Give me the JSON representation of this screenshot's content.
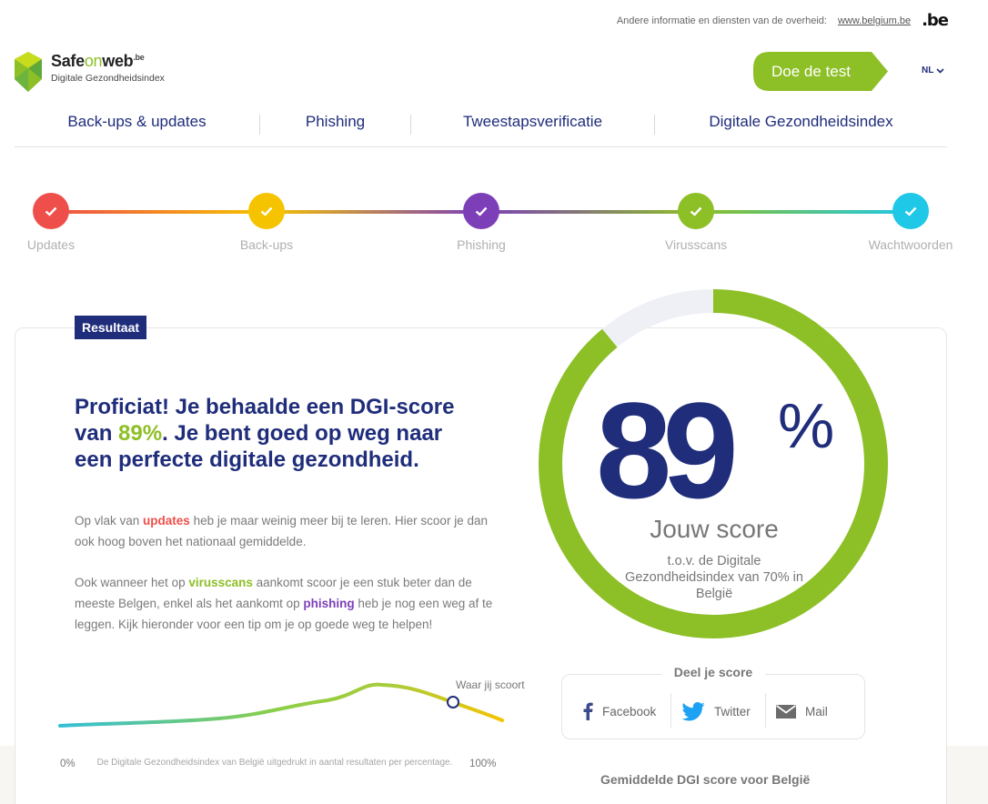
{
  "topbar": {
    "text": "Andere informatie en diensten van de overheid:",
    "link": "www.belgium.be",
    "be_logo": ".be"
  },
  "logo": {
    "brand_a": "Safe",
    "brand_b": "on",
    "brand_c": "web",
    "brand_sup": ".be",
    "subtitle": "Digitale Gezondheidsindex"
  },
  "header": {
    "cta_label": "Doe de test",
    "language": "NL"
  },
  "nav": {
    "items": [
      {
        "label": "Back-ups & updates"
      },
      {
        "label": "Phishing"
      },
      {
        "label": "Tweestapsverificatie"
      },
      {
        "label": "Digitale Gezondheidsindex"
      }
    ]
  },
  "steps": [
    {
      "label": "Updates",
      "color": "#ef4f4a"
    },
    {
      "label": "Back-ups",
      "color": "#f5c300"
    },
    {
      "label": "Phishing",
      "color": "#7d3fb8"
    },
    {
      "label": "Virusscans",
      "color": "#8dbf26"
    },
    {
      "label": "Wachtwoorden",
      "color": "#1ec8e6"
    }
  ],
  "result": {
    "badge": "Resultaat",
    "headline_a": "Proficiat! Je behaalde een DGI-score van ",
    "headline_pct": "89%",
    "headline_b": ". Je bent goed op weg naar een perfecte digitale gezondheid.",
    "p1_a": "Op vlak van ",
    "p1_hl": "updates",
    "p1_b": " heb je maar weinig meer bij te leren. Hier scoor je dan ook hoog boven het nationaal gemiddelde.",
    "p2_a": "Ook wanneer het op ",
    "p2_hl1": "virusscans",
    "p2_b": " aankomt scoor je een stuk beter dan de meeste Belgen, enkel als het aankomt op ",
    "p2_hl2": "phishing",
    "p2_c": " heb je nog een weg af te leggen. Kijk hieronder voor een tip om je op goede weg te helpen!"
  },
  "distribution": {
    "you_label": "Waar jij scoort",
    "axis_min": "0%",
    "axis_max": "100%",
    "description": "De Digitale Gezondheidsindex van België uitgedrukt in aantal resultaten per percentage."
  },
  "score": {
    "value": "89",
    "unit": "%",
    "fraction": 0.89,
    "label": "Jouw score",
    "sub": "t.o.v. de Digitale Gezondheidsindex van 70% in België",
    "ring_color": "#8dbf26",
    "track_color": "#eef0f5"
  },
  "share": {
    "title": "Deel je score",
    "facebook": "Facebook",
    "twitter": "Twitter",
    "mail": "Mail"
  },
  "average": {
    "title": "Gemiddelde DGI score voor België"
  }
}
